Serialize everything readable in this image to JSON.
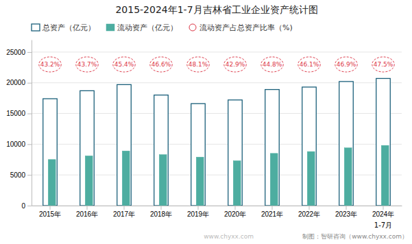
{
  "chart_data": {
    "type": "bar",
    "title": "2015-2024年1-7月吉林省工业企业资产统计图",
    "categories": [
      "2015年",
      "2016年",
      "2017年",
      "2018年",
      "2019年",
      "2020年",
      "2021年",
      "2022年",
      "2023年",
      "2024年"
    ],
    "series": [
      {
        "name": "总资产（亿元）",
        "type": "bar",
        "color": "#1A5F7A",
        "values": [
          17400,
          18700,
          19700,
          18000,
          16600,
          17200,
          18900,
          19300,
          20200,
          20700
        ]
      },
      {
        "name": "流动资产（亿元）",
        "type": "bar",
        "color": "#4DADA0",
        "values": [
          7500,
          8100,
          8900,
          8300,
          7900,
          7300,
          8500,
          8800,
          9400,
          9800
        ]
      },
      {
        "name": "流动资产占总资产比率（%)",
        "type": "label",
        "color": "#DC3545",
        "marker": "circle",
        "line_style": "dashed",
        "values": [
          43.2,
          43.7,
          45.4,
          46.6,
          48.1,
          42.9,
          44.8,
          46.1,
          46.9,
          47.5
        ],
        "value_labels": [
          "43.2%",
          "43.7%",
          "45.4%",
          "46.6%",
          "48.1%",
          "42.9%",
          "44.8%",
          "46.1%",
          "46.9%",
          "47.5%"
        ]
      }
    ],
    "annotations": [
      {
        "text": "1-7月",
        "x": "2024年"
      },
      {
        "text": "www.chyxx.com"
      },
      {
        "text": "制图：智研咨询（www.chyxx.com）"
      }
    ],
    "ylim": [
      0,
      27000
    ],
    "yticks": [
      0,
      5000,
      10000,
      15000,
      20000,
      25000
    ],
    "grid": true,
    "legend": "top-left"
  }
}
